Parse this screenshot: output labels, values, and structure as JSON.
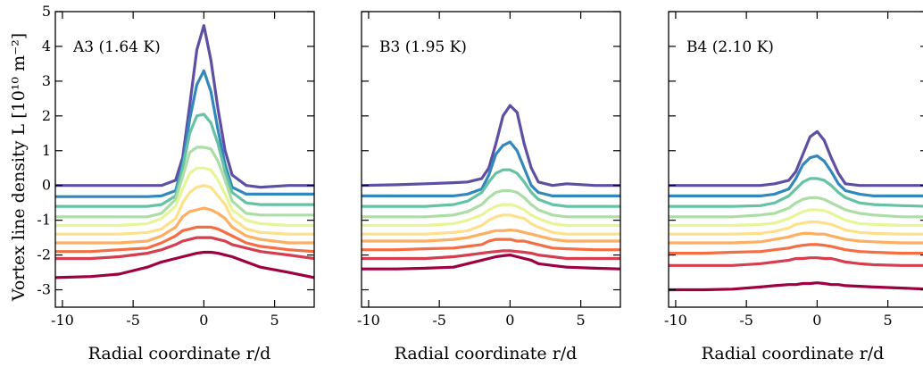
{
  "figure": {
    "ylabel": "Vortex line density L [10¹⁰ m⁻²]",
    "xlabel": "Radial coordinate r/d",
    "xlim": [
      -10.5,
      7.8
    ],
    "ylim": [
      -3.5,
      5
    ],
    "xticks": [
      -10,
      -5,
      0,
      5
    ],
    "yticks": [
      -3,
      -2,
      -1,
      0,
      1,
      2,
      3,
      4,
      5
    ],
    "series_colors": [
      "#5e4fa2",
      "#3288bd",
      "#66c2a5",
      "#abdda4",
      "#e6f598",
      "#fee08b",
      "#fdae61",
      "#f46d43",
      "#d53e4f",
      "#9e0142"
    ]
  },
  "chart_data": [
    {
      "type": "line",
      "title": "A3 (1.64 K)",
      "x": [
        -10.5,
        -8,
        -6,
        -4,
        -3,
        -2,
        -1.5,
        -1,
        -0.5,
        0,
        0.5,
        1,
        1.5,
        2,
        3,
        4,
        6,
        7.8
      ],
      "series": [
        {
          "values": [
            0.0,
            0.0,
            0.0,
            0.0,
            0.0,
            0.15,
            0.8,
            2.3,
            3.9,
            4.6,
            3.6,
            2.2,
            1.0,
            0.3,
            0.0,
            -0.05,
            0.0,
            0.0
          ]
        },
        {
          "values": [
            -0.32,
            -0.32,
            -0.32,
            -0.32,
            -0.3,
            -0.15,
            0.6,
            1.9,
            2.9,
            3.3,
            2.7,
            1.6,
            0.6,
            -0.05,
            -0.25,
            -0.25,
            -0.25,
            -0.25
          ]
        },
        {
          "values": [
            -0.6,
            -0.6,
            -0.6,
            -0.6,
            -0.55,
            -0.3,
            0.5,
            1.5,
            2.0,
            2.05,
            1.8,
            1.2,
            0.4,
            -0.2,
            -0.5,
            -0.55,
            -0.55,
            -0.55
          ]
        },
        {
          "values": [
            -0.9,
            -0.9,
            -0.9,
            -0.9,
            -0.8,
            -0.4,
            0.25,
            0.95,
            1.1,
            1.1,
            1.05,
            0.7,
            0.15,
            -0.45,
            -0.8,
            -0.85,
            -0.85,
            -0.85
          ]
        },
        {
          "values": [
            -1.15,
            -1.15,
            -1.15,
            -1.1,
            -0.95,
            -0.6,
            -0.1,
            0.35,
            0.5,
            0.5,
            0.45,
            0.15,
            -0.25,
            -0.7,
            -1.0,
            -1.1,
            -1.15,
            -1.15
          ]
        },
        {
          "values": [
            -1.4,
            -1.4,
            -1.4,
            -1.35,
            -1.25,
            -0.95,
            -0.5,
            -0.2,
            -0.05,
            0.0,
            -0.05,
            -0.3,
            -0.55,
            -0.95,
            -1.25,
            -1.35,
            -1.4,
            -1.4
          ]
        },
        {
          "values": [
            -1.65,
            -1.65,
            -1.65,
            -1.6,
            -1.45,
            -1.2,
            -0.9,
            -0.75,
            -0.7,
            -0.65,
            -0.7,
            -0.8,
            -0.95,
            -1.2,
            -1.45,
            -1.55,
            -1.65,
            -1.65
          ]
        },
        {
          "values": [
            -1.9,
            -1.9,
            -1.85,
            -1.8,
            -1.65,
            -1.45,
            -1.3,
            -1.25,
            -1.2,
            -1.2,
            -1.2,
            -1.25,
            -1.35,
            -1.45,
            -1.65,
            -1.75,
            -1.85,
            -1.9
          ]
        },
        {
          "values": [
            -2.1,
            -2.1,
            -2.05,
            -1.95,
            -1.85,
            -1.7,
            -1.6,
            -1.55,
            -1.5,
            -1.5,
            -1.5,
            -1.55,
            -1.6,
            -1.7,
            -1.8,
            -1.9,
            -2.0,
            -2.1
          ]
        },
        {
          "values": [
            -2.65,
            -2.62,
            -2.55,
            -2.35,
            -2.2,
            -2.1,
            -2.05,
            -2.0,
            -1.95,
            -1.92,
            -1.92,
            -1.95,
            -2.0,
            -2.05,
            -2.2,
            -2.35,
            -2.5,
            -2.65
          ]
        }
      ]
    },
    {
      "type": "line",
      "title": "B3 (1.95 K)",
      "x": [
        -10.5,
        -8,
        -6,
        -4,
        -3,
        -2,
        -1.5,
        -1,
        -0.5,
        0,
        0.5,
        1,
        1.5,
        2,
        3,
        4,
        6,
        7.8
      ],
      "series": [
        {
          "values": [
            0.0,
            0.02,
            0.05,
            0.08,
            0.1,
            0.2,
            0.5,
            1.2,
            2.0,
            2.3,
            2.1,
            1.2,
            0.5,
            0.1,
            0.0,
            0.05,
            0.0,
            0.0
          ]
        },
        {
          "values": [
            -0.3,
            -0.3,
            -0.3,
            -0.3,
            -0.25,
            -0.1,
            0.3,
            0.9,
            1.15,
            1.25,
            1.0,
            0.5,
            0.0,
            -0.2,
            -0.3,
            -0.3,
            -0.3,
            -0.3
          ]
        },
        {
          "values": [
            -0.6,
            -0.6,
            -0.6,
            -0.55,
            -0.45,
            -0.2,
            0.1,
            0.35,
            0.45,
            0.45,
            0.35,
            0.1,
            -0.2,
            -0.4,
            -0.55,
            -0.6,
            -0.6,
            -0.6
          ]
        },
        {
          "values": [
            -0.9,
            -0.9,
            -0.9,
            -0.85,
            -0.75,
            -0.55,
            -0.35,
            -0.2,
            -0.15,
            -0.15,
            -0.2,
            -0.35,
            -0.55,
            -0.7,
            -0.85,
            -0.9,
            -0.9,
            -0.9
          ]
        },
        {
          "values": [
            -1.15,
            -1.15,
            -1.15,
            -1.1,
            -1.0,
            -0.85,
            -0.7,
            -0.6,
            -0.55,
            -0.55,
            -0.6,
            -0.7,
            -0.85,
            -0.95,
            -1.1,
            -1.15,
            -1.15,
            -1.15
          ]
        },
        {
          "values": [
            -1.4,
            -1.4,
            -1.4,
            -1.35,
            -1.3,
            -1.15,
            -1.0,
            -0.9,
            -0.85,
            -0.85,
            -0.9,
            -0.95,
            -1.1,
            -1.2,
            -1.35,
            -1.4,
            -1.4,
            -1.4
          ]
        },
        {
          "values": [
            -1.6,
            -1.6,
            -1.6,
            -1.55,
            -1.5,
            -1.4,
            -1.35,
            -1.3,
            -1.3,
            -1.28,
            -1.3,
            -1.35,
            -1.4,
            -1.45,
            -1.55,
            -1.6,
            -1.6,
            -1.6
          ]
        },
        {
          "values": [
            -1.85,
            -1.85,
            -1.82,
            -1.8,
            -1.75,
            -1.7,
            -1.6,
            -1.55,
            -1.55,
            -1.55,
            -1.6,
            -1.6,
            -1.65,
            -1.7,
            -1.8,
            -1.82,
            -1.85,
            -1.85
          ]
        },
        {
          "values": [
            -2.1,
            -2.1,
            -2.1,
            -2.05,
            -2.0,
            -1.95,
            -1.92,
            -1.9,
            -1.88,
            -1.88,
            -1.9,
            -1.92,
            -1.95,
            -2.0,
            -2.05,
            -2.1,
            -2.1,
            -2.1
          ]
        },
        {
          "values": [
            -2.4,
            -2.4,
            -2.38,
            -2.35,
            -2.25,
            -2.15,
            -2.1,
            -2.05,
            -2.02,
            -2.0,
            -2.05,
            -2.1,
            -2.15,
            -2.25,
            -2.3,
            -2.35,
            -2.38,
            -2.4
          ]
        }
      ]
    },
    {
      "type": "line",
      "title": "B4 (2.10 K)",
      "x": [
        -10.5,
        -8,
        -6,
        -4,
        -3,
        -2,
        -1.5,
        -1,
        -0.5,
        0,
        0.5,
        1,
        1.5,
        2,
        3,
        4,
        6,
        7.8
      ],
      "series": [
        {
          "values": [
            0.0,
            0.0,
            0.0,
            0.0,
            0.05,
            0.15,
            0.4,
            0.9,
            1.4,
            1.55,
            1.3,
            0.8,
            0.35,
            0.05,
            0.0,
            0.0,
            0.0,
            0.0
          ]
        },
        {
          "values": [
            -0.3,
            -0.3,
            -0.3,
            -0.3,
            -0.25,
            -0.1,
            0.2,
            0.6,
            0.8,
            0.85,
            0.7,
            0.4,
            0.05,
            -0.15,
            -0.25,
            -0.3,
            -0.3,
            -0.3
          ]
        },
        {
          "values": [
            -0.6,
            -0.6,
            -0.6,
            -0.58,
            -0.5,
            -0.3,
            -0.1,
            0.1,
            0.2,
            0.2,
            0.15,
            0.0,
            -0.2,
            -0.35,
            -0.5,
            -0.55,
            -0.58,
            -0.6
          ]
        },
        {
          "values": [
            -0.9,
            -0.9,
            -0.9,
            -0.85,
            -0.8,
            -0.65,
            -0.5,
            -0.4,
            -0.35,
            -0.35,
            -0.4,
            -0.5,
            -0.6,
            -0.7,
            -0.8,
            -0.85,
            -0.9,
            -0.9
          ]
        },
        {
          "values": [
            -1.15,
            -1.15,
            -1.15,
            -1.12,
            -1.08,
            -0.95,
            -0.85,
            -0.75,
            -0.7,
            -0.7,
            -0.72,
            -0.8,
            -0.9,
            -1.0,
            -1.1,
            -1.12,
            -1.15,
            -1.15
          ]
        },
        {
          "values": [
            -1.4,
            -1.4,
            -1.4,
            -1.38,
            -1.32,
            -1.22,
            -1.12,
            -1.08,
            -1.05,
            -1.05,
            -1.08,
            -1.12,
            -1.2,
            -1.28,
            -1.35,
            -1.38,
            -1.4,
            -1.4
          ]
        },
        {
          "values": [
            -1.65,
            -1.65,
            -1.65,
            -1.62,
            -1.55,
            -1.48,
            -1.42,
            -1.38,
            -1.38,
            -1.4,
            -1.4,
            -1.45,
            -1.5,
            -1.55,
            -1.6,
            -1.62,
            -1.65,
            -1.65
          ]
        },
        {
          "values": [
            -1.95,
            -1.95,
            -1.92,
            -1.9,
            -1.85,
            -1.8,
            -1.75,
            -1.72,
            -1.7,
            -1.7,
            -1.72,
            -1.75,
            -1.8,
            -1.85,
            -1.9,
            -1.92,
            -1.95,
            -1.95
          ]
        },
        {
          "values": [
            -2.3,
            -2.3,
            -2.3,
            -2.25,
            -2.2,
            -2.15,
            -2.1,
            -2.1,
            -2.08,
            -2.08,
            -2.1,
            -2.1,
            -2.15,
            -2.2,
            -2.25,
            -2.28,
            -2.3,
            -2.3
          ]
        },
        {
          "values": [
            -3.0,
            -3.0,
            -2.98,
            -2.92,
            -2.88,
            -2.85,
            -2.85,
            -2.82,
            -2.82,
            -2.8,
            -2.82,
            -2.85,
            -2.85,
            -2.88,
            -2.9,
            -2.92,
            -2.95,
            -2.98
          ]
        }
      ]
    }
  ]
}
